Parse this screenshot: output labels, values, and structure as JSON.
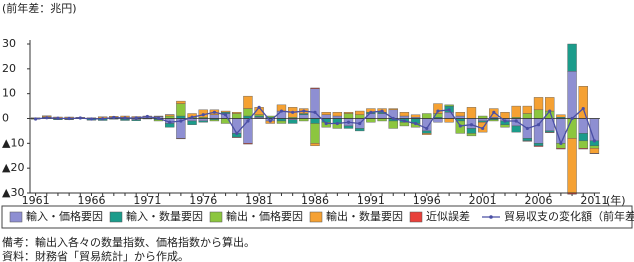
{
  "chart_data": {
    "type": "bar",
    "stacked": true,
    "y_label": "(前年差：兆円)",
    "x_label": "(年)",
    "x": [
      1961,
      1962,
      1963,
      1964,
      1965,
      1966,
      1967,
      1968,
      1969,
      1970,
      1971,
      1972,
      1973,
      1974,
      1975,
      1976,
      1977,
      1978,
      1979,
      1980,
      1981,
      1982,
      1983,
      1984,
      1985,
      1986,
      1987,
      1988,
      1989,
      1990,
      1991,
      1992,
      1993,
      1994,
      1995,
      1996,
      1997,
      1998,
      1999,
      2000,
      2001,
      2002,
      2003,
      2004,
      2005,
      2006,
      2007,
      2008,
      2009,
      2010,
      2011
    ],
    "xlim": [
      1960.5,
      2011.5
    ],
    "xticks": [
      1961,
      1966,
      1971,
      1976,
      1981,
      1986,
      1991,
      1996,
      2001,
      2006,
      2011
    ],
    "ylim": [
      -30,
      30
    ],
    "yticks": [
      {
        "value": -30,
        "label": "▲30"
      },
      {
        "value": -20,
        "label": "▲20"
      },
      {
        "value": -10,
        "label": "▲10"
      },
      0,
      10,
      20,
      30
    ],
    "series": [
      {
        "name": "輸入・価格要因",
        "color": "#8e8fd2",
        "type": "bar",
        "values": [
          0,
          0.2,
          -0.2,
          -0.3,
          0.2,
          -0.3,
          -0.2,
          0,
          -0.3,
          -0.5,
          0.5,
          0.8,
          -2,
          -8,
          -1,
          -1,
          1.5,
          2,
          -6,
          -10,
          0.5,
          -1,
          3,
          -0.5,
          1.5,
          12,
          1.5,
          1,
          -3,
          -4,
          2,
          2,
          3.5,
          1,
          0.5,
          -5,
          -1.5,
          2.5,
          1,
          -4,
          -1,
          0.5,
          -1,
          -3,
          -8,
          -10,
          -5,
          -10,
          19,
          -6,
          -9
        ]
      },
      {
        "name": "輸入・数量要因",
        "color": "#1b9c8b",
        "type": "bar",
        "values": [
          -0.3,
          0.3,
          -0.3,
          -0.2,
          0,
          -0.4,
          -0.6,
          -0.3,
          -0.5,
          -0.4,
          0.2,
          -0.5,
          -1.5,
          1,
          -1.5,
          -0.5,
          -0.5,
          0.5,
          -1.5,
          1,
          0.5,
          0.5,
          -1,
          -1.5,
          0.5,
          -2,
          -1.5,
          -2,
          -1,
          -1,
          0.5,
          0.5,
          -1,
          -1.5,
          -2,
          -1,
          0.5,
          2.5,
          -1,
          -2,
          -0.5,
          -0.5,
          -1.5,
          -2.5,
          -1,
          -1,
          -0.5,
          0.5,
          11,
          -3,
          -2
        ]
      },
      {
        "name": "輸出・価格要因",
        "color": "#8cc63f",
        "type": "bar",
        "values": [
          0,
          0.2,
          0.1,
          0.2,
          -0.1,
          0.1,
          0.2,
          0.3,
          0.4,
          0.3,
          -0.2,
          -0.5,
          1,
          5,
          0.5,
          0.5,
          -0.5,
          -2,
          2,
          3,
          0.5,
          0.5,
          -1,
          0.5,
          -1,
          -8,
          -2,
          -2,
          2,
          1.5,
          -1.5,
          -1,
          -3,
          -1.5,
          -1.5,
          2,
          1.5,
          0.5,
          -5,
          -1,
          1,
          -0.5,
          -1,
          0.5,
          2,
          3.5,
          3,
          -2,
          -8,
          -3,
          -1
        ]
      },
      {
        "name": "輸出・数量要因",
        "color": "#f5a133",
        "type": "bar",
        "values": [
          0.3,
          0.4,
          0.5,
          0.4,
          0.3,
          0.2,
          0.5,
          0.6,
          0.6,
          0.5,
          0.3,
          0.2,
          0.5,
          1,
          1.5,
          3,
          2,
          0.5,
          0.5,
          5,
          3,
          -1,
          2.5,
          4,
          2,
          -1,
          1,
          1.5,
          0.5,
          1.5,
          1.5,
          1.5,
          0.5,
          1.5,
          1,
          -0.5,
          4,
          -1.5,
          1.5,
          4.5,
          -4,
          3.5,
          2.5,
          4.5,
          3,
          5,
          5.5,
          1,
          -22,
          13,
          -2
        ]
      },
      {
        "name": "近似誤差",
        "color": "#e8413b",
        "type": "bar",
        "values": [
          0,
          0,
          0,
          0,
          0,
          0,
          0,
          0,
          0,
          0,
          0,
          0,
          0.1,
          -0.2,
          0,
          0,
          0,
          0,
          -0.2,
          -0.3,
          0,
          0,
          0,
          0,
          0,
          0.3,
          0,
          0,
          0,
          0,
          0,
          0,
          0,
          0,
          0,
          0,
          0,
          0,
          0,
          0,
          0,
          0,
          0,
          0,
          -0.2,
          -0.3,
          -0.2,
          -0.3,
          -0.5,
          -0.3,
          -0.2
        ]
      },
      {
        "name": "貿易収支の変化額（前年差）",
        "color": "#4a4fa5",
        "type": "line",
        "values": [
          -0.2,
          0.3,
          0.1,
          0,
          0.2,
          -0.2,
          -0.1,
          0.4,
          0.2,
          0.2,
          0.8,
          0.1,
          -1.5,
          -1,
          0.5,
          1.5,
          2.5,
          1.5,
          -6,
          -1,
          4.5,
          -1,
          3,
          2.5,
          3,
          2.5,
          -2,
          -2,
          -1.5,
          -2,
          2.5,
          3,
          0,
          -1,
          -2,
          -4,
          3,
          3.5,
          -3,
          -2.5,
          -4,
          2.5,
          -1,
          -1,
          -4,
          -2.5,
          3,
          -10,
          0,
          4,
          -9
        ]
      }
    ],
    "notes": [
      "備考：輸出入各々の数量指数、価格指数から算出。",
      "資料：財務省「貿易統計」から作成。"
    ]
  }
}
